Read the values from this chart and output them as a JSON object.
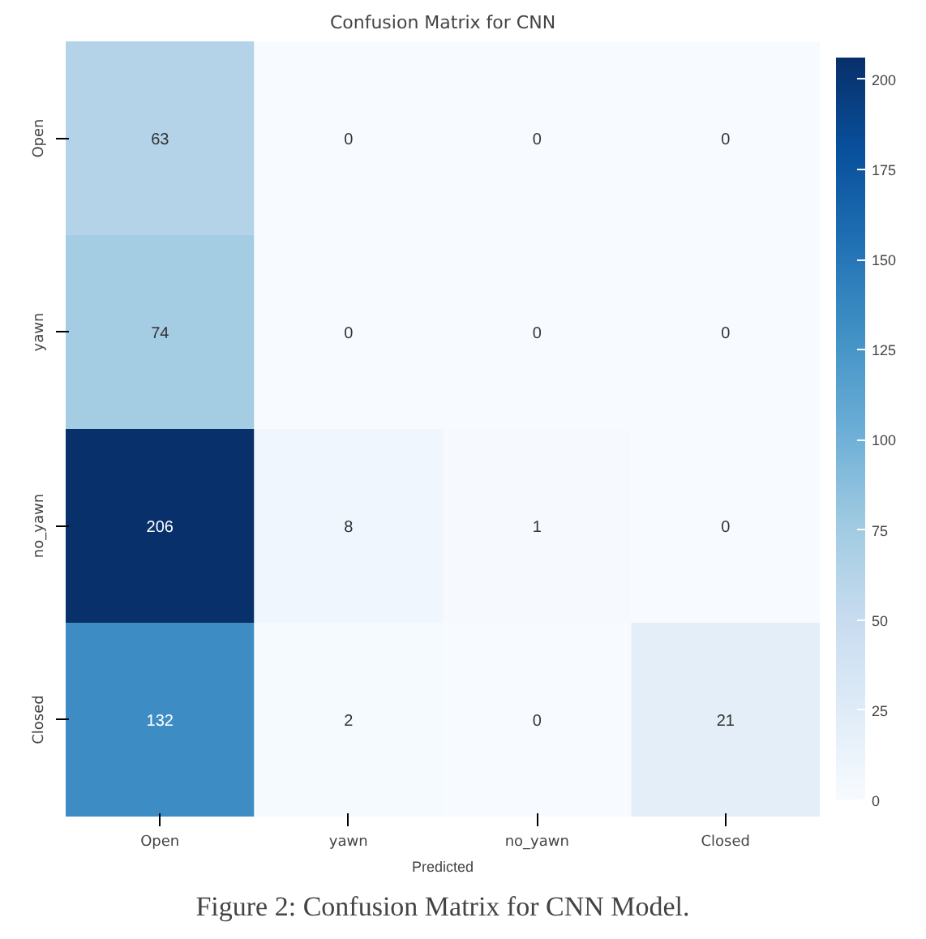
{
  "chart_data": {
    "type": "heatmap",
    "title": "Confusion Matrix for CNN",
    "xlabel": "Predicted",
    "categories": [
      "Open",
      "yawn",
      "no_yawn",
      "Closed"
    ],
    "y_categories": [
      "Open",
      "yawn",
      "no_yawn",
      "Closed"
    ],
    "cells": [
      [
        63,
        0,
        0,
        0
      ],
      [
        74,
        0,
        0,
        0
      ],
      [
        206,
        8,
        1,
        0
      ],
      [
        132,
        2,
        0,
        21
      ]
    ],
    "clim": [
      0,
      206
    ],
    "cticks": [
      0,
      25,
      50,
      75,
      100,
      125,
      150,
      175,
      200
    ],
    "data_labels": true,
    "annotations": [
      "Figure 2: Confusion Matrix for CNN Model."
    ]
  }
}
